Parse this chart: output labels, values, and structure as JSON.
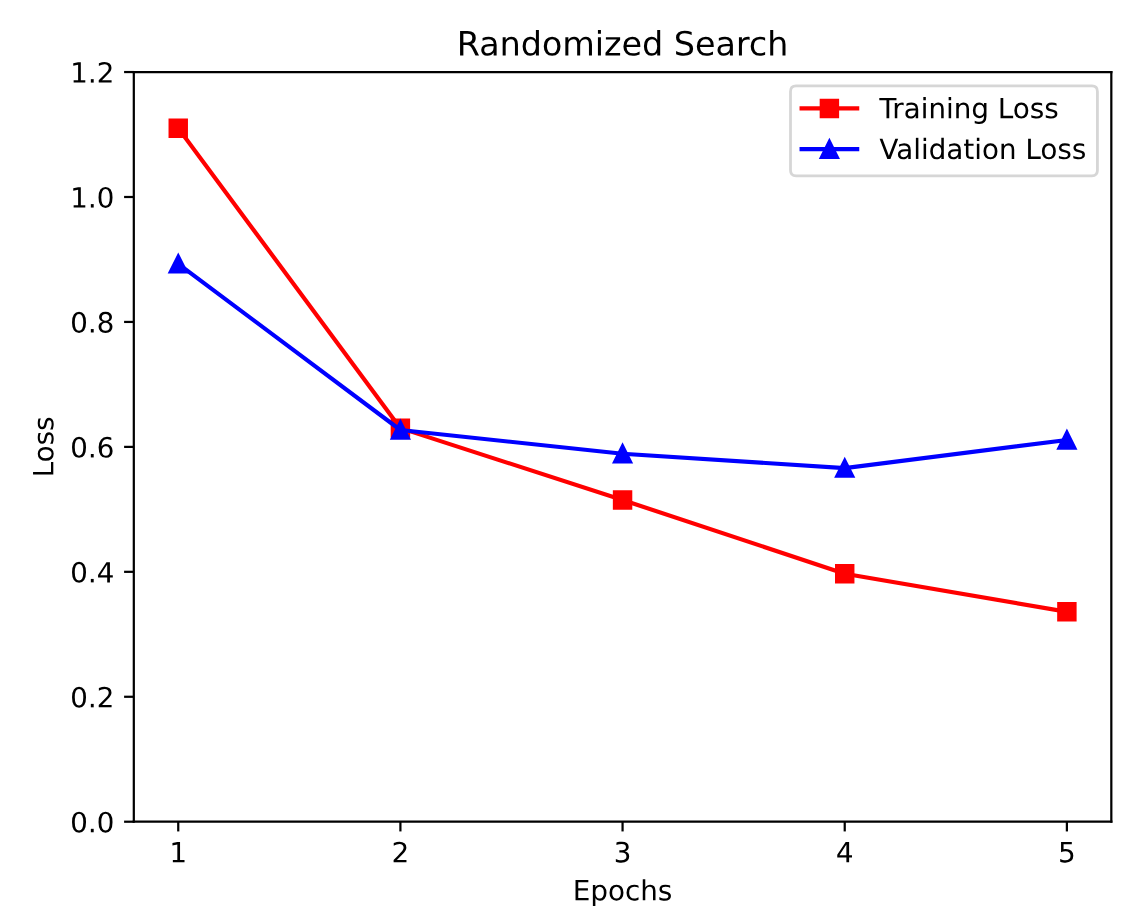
{
  "chart_data": {
    "type": "line",
    "title": "Randomized Search",
    "xlabel": "Epochs",
    "ylabel": "Loss",
    "x": [
      1,
      2,
      3,
      4,
      5
    ],
    "series": [
      {
        "name": "Training Loss",
        "color": "#ff0000",
        "values": [
          1.11,
          0.63,
          0.515,
          0.397,
          0.336
        ],
        "marker": "square"
      },
      {
        "name": "Validation Loss",
        "color": "#0000ff",
        "values": [
          0.893,
          0.627,
          0.589,
          0.566,
          0.611
        ],
        "marker": "triangle"
      }
    ],
    "xlim": [
      0.8,
      5.2
    ],
    "xticks": [
      1,
      2,
      3,
      4,
      5
    ],
    "ylim": [
      0,
      1.2
    ],
    "yticks": [
      {
        "value": 0,
        "label": "0.0"
      },
      0.2,
      0.4,
      0.6,
      0.8,
      {
        "value": 1,
        "label": "1.0"
      },
      1.2
    ],
    "legend": "top right",
    "grid": false,
    "line_style": "solid"
  }
}
